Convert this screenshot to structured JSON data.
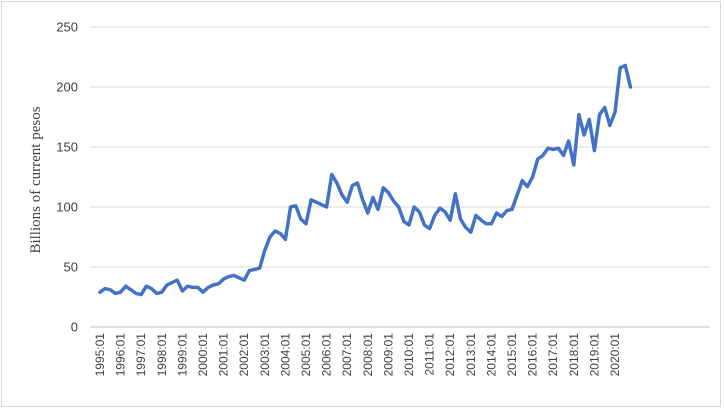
{
  "chart_data": {
    "type": "line",
    "title": "",
    "xlabel": "",
    "ylabel": "Billions of current pesos",
    "ylim": [
      0,
      250
    ],
    "yticks": [
      0,
      50,
      100,
      150,
      200,
      250
    ],
    "xticks": [
      "1995:01",
      "1996:01",
      "1997:01",
      "1998:01",
      "1999:01",
      "2000:01",
      "2001:01",
      "2002:01",
      "2003:01",
      "2004:01",
      "2005:01",
      "2006:01",
      "2007:01",
      "2008:01",
      "2009:01",
      "2010:01",
      "2011:01",
      "2012:01",
      "2013:01",
      "2014:01",
      "2015:01",
      "2016:01",
      "2017:01",
      "2018:01",
      "2019:01",
      "2020:01"
    ],
    "grid": true,
    "legend": "none",
    "color": "#4472C4",
    "series": [
      {
        "x_start": "1995:01",
        "frequency": "quarterly",
        "values": [
          29,
          32,
          31,
          28,
          29,
          34,
          31,
          28,
          27,
          34,
          32,
          28,
          29,
          35,
          37,
          39,
          30,
          34,
          33,
          33,
          29,
          33,
          35,
          36,
          40,
          42,
          43,
          41,
          39,
          47,
          48,
          49,
          64,
          75,
          80,
          78,
          73,
          100,
          101,
          90,
          86,
          106,
          104,
          102,
          100,
          127,
          120,
          110,
          104,
          118,
          120,
          106,
          95,
          108,
          98,
          116,
          112,
          105,
          100,
          88,
          85,
          100,
          96,
          85,
          82,
          93,
          99,
          96,
          89,
          111,
          90,
          83,
          79,
          93,
          89,
          86,
          86,
          95,
          92,
          97,
          98,
          110,
          122,
          117,
          125,
          140,
          143,
          149,
          148,
          149,
          143,
          155,
          135,
          177,
          160,
          173,
          147,
          177,
          183,
          168,
          179,
          216,
          218,
          200
        ]
      }
    ]
  }
}
